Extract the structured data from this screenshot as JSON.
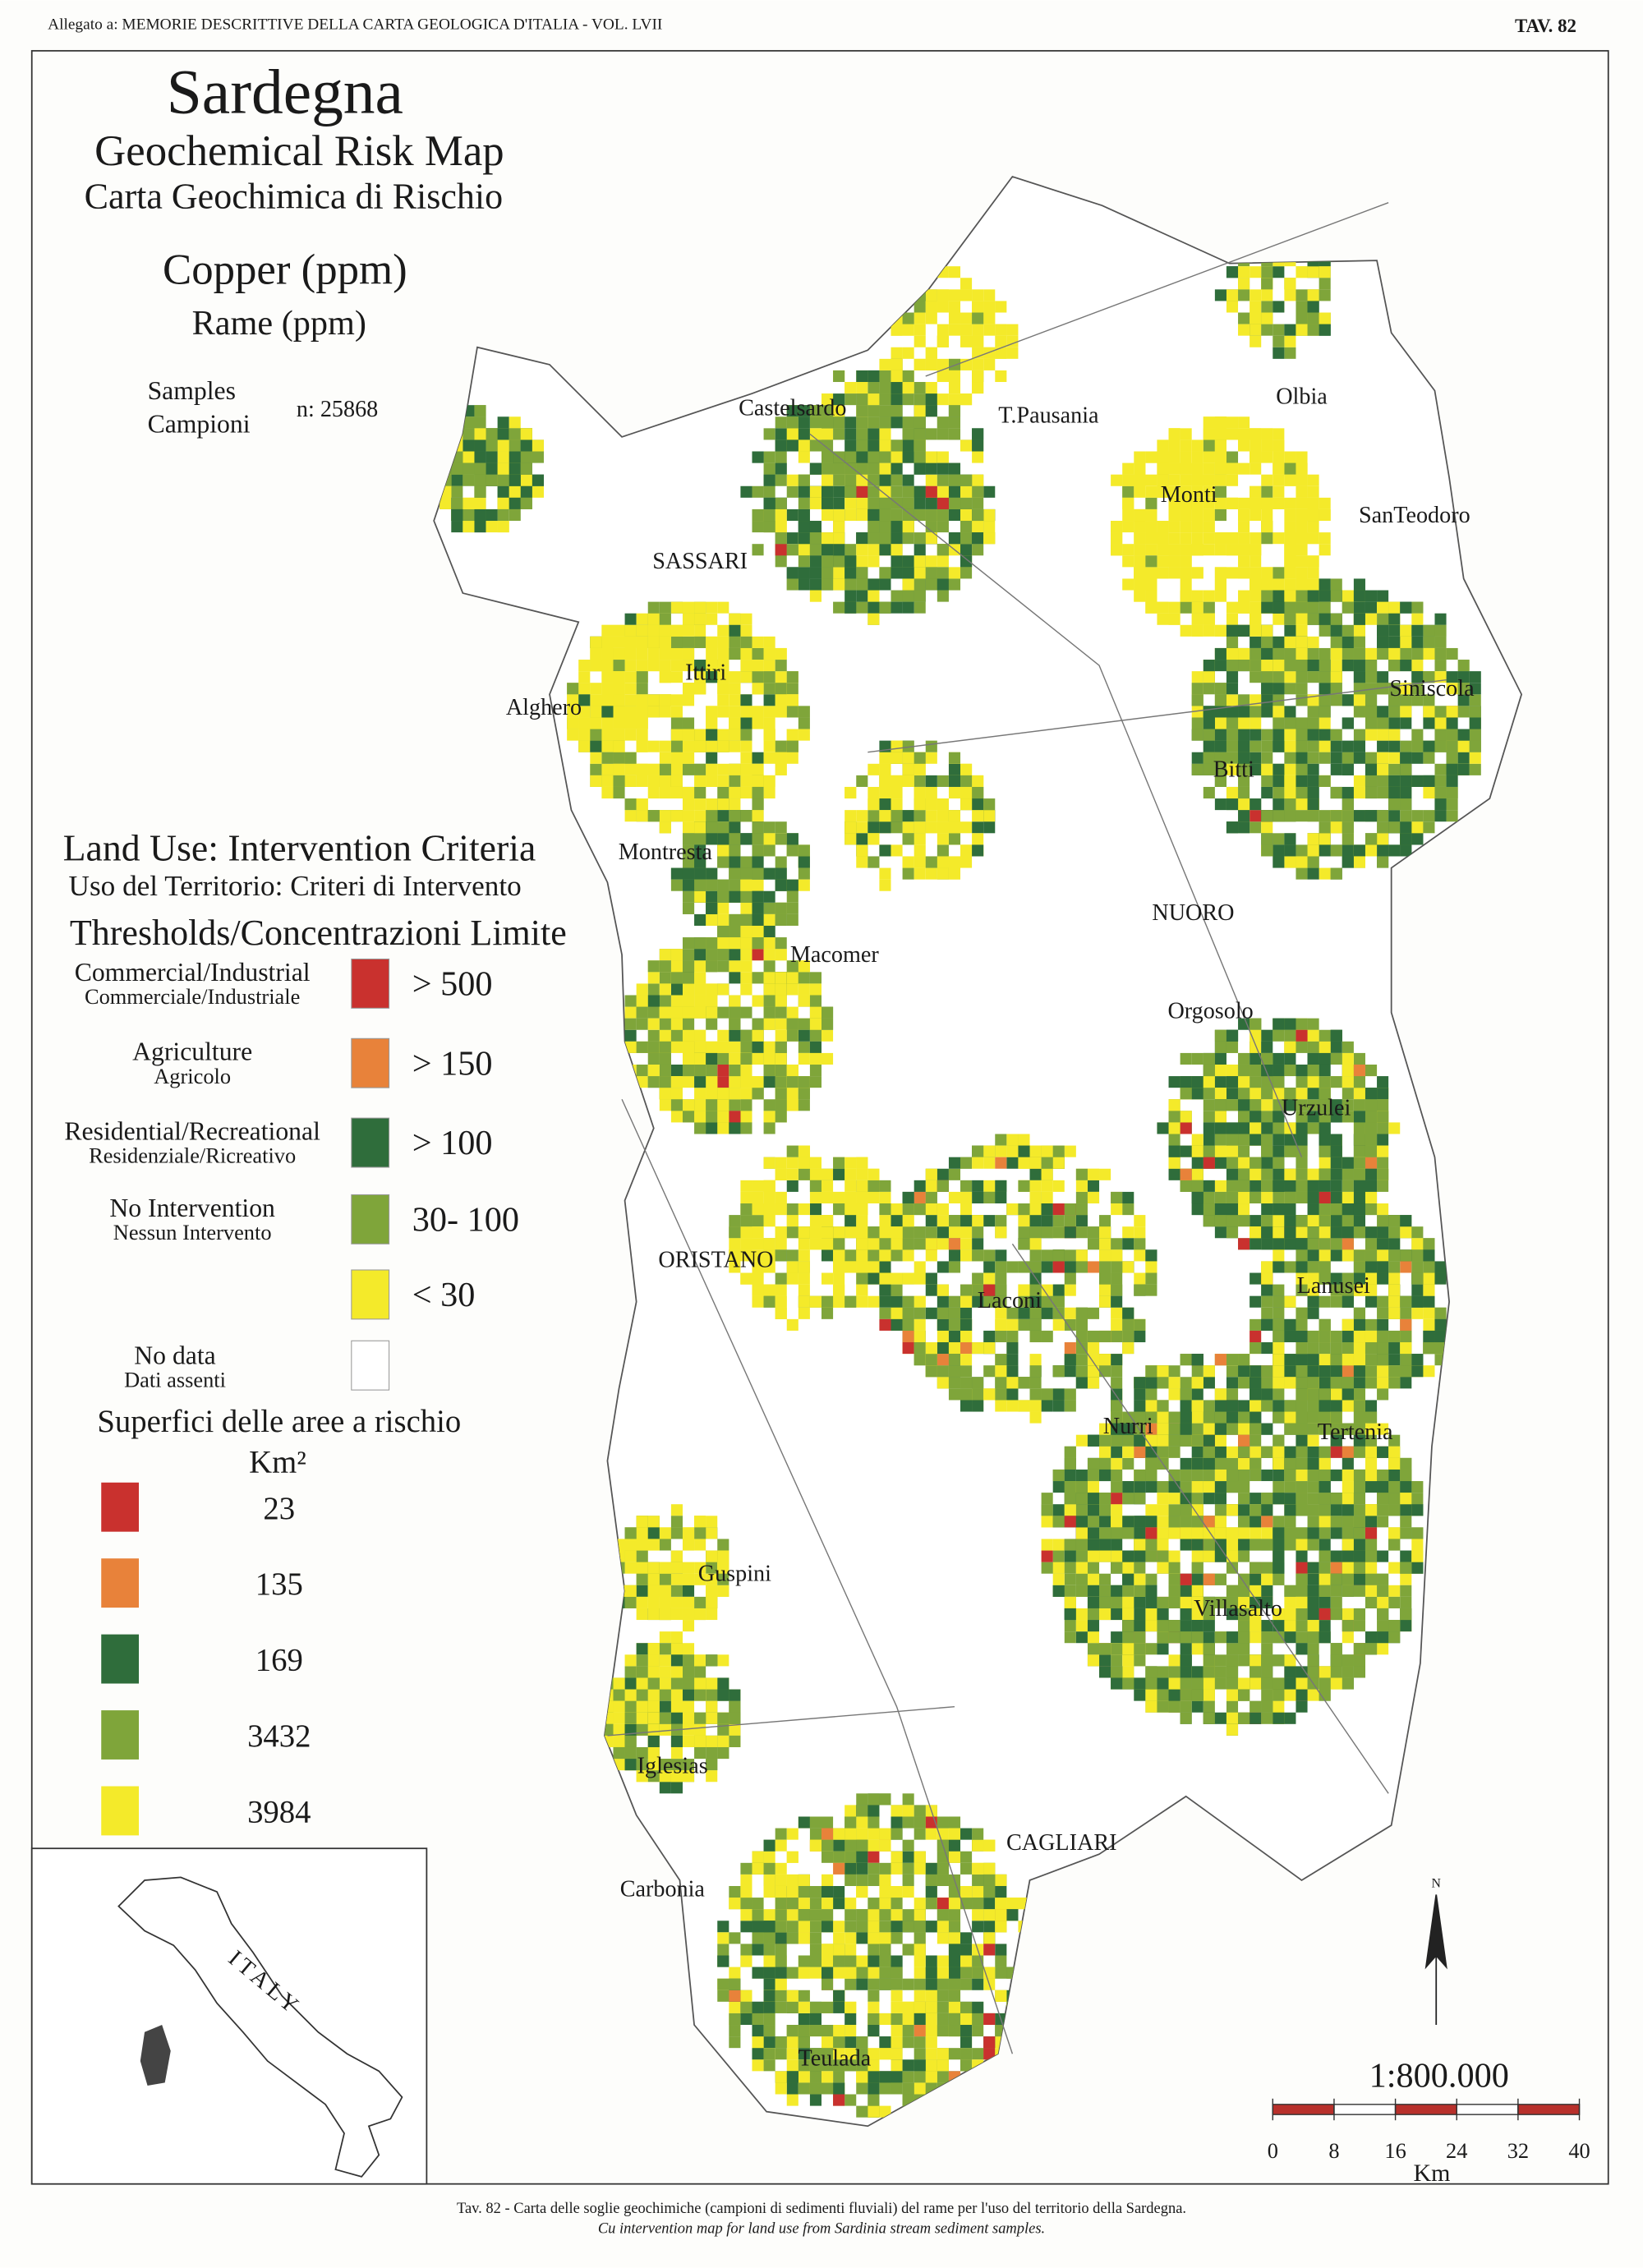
{
  "header": {
    "left": "Allegato a: MEMORIE DESCRITTIVE DELLA CARTA GEOLOGICA D'ITALIA - VOL. LVII",
    "right": "TAV. 82"
  },
  "title": {
    "region": "Sardegna",
    "en": "Geochemical Risk Map",
    "it": "Carta Geochimica di Rischio",
    "element_en": "Copper (ppm)",
    "element_it": "Rame (ppm)",
    "samples_en": "Samples",
    "samples_it": "Campioni",
    "samples_n": "n: 25868"
  },
  "legend": {
    "title_en": "Land Use: Intervention Criteria",
    "title_it": "Uso del Territorio: Criteri di Intervento",
    "thresholds_title": "Thresholds/Concentrazioni Limite",
    "classes": [
      {
        "label_en": "Commercial/Industrial",
        "label_it": "Commerciale/Industriale",
        "threshold": "> 500",
        "color": "#c9312e"
      },
      {
        "label_en": "Agriculture",
        "label_it": "Agricolo",
        "threshold": "> 150",
        "color": "#e8823a"
      },
      {
        "label_en": "Residential/Recreational",
        "label_it": "Residenziale/Ricreativo",
        "threshold": "> 100",
        "color": "#2f6d3b"
      },
      {
        "label_en": "No Intervention",
        "label_it": "Nessun Intervento",
        "threshold": "30- 100",
        "color": "#7fa53a"
      },
      {
        "threshold": "< 30",
        "color": "#f4ea2a"
      }
    ],
    "no_data": {
      "label_en": "No data",
      "label_it": "Dati assenti",
      "color": "#ffffff"
    }
  },
  "areas": {
    "title": "Superfici delle aree a rischio",
    "unit": "Km²",
    "items": [
      {
        "value": 23,
        "color": "#c9312e"
      },
      {
        "value": 135,
        "color": "#e8823a"
      },
      {
        "value": 169,
        "color": "#2f6d3b"
      },
      {
        "value": 3432,
        "color": "#7fa53a"
      },
      {
        "value": 3984,
        "color": "#f4ea2a"
      }
    ]
  },
  "places": [
    "Castelsardo",
    "T.Pausania",
    "Olbia",
    "Monti",
    "SanTeodoro",
    "SASSARI",
    "Ittiri",
    "Alghero",
    "Siniscola",
    "Bitti",
    "Montresta",
    "NUORO",
    "Macomer",
    "Orgosolo",
    "Urzulei",
    "ORISTANO",
    "Laconi",
    "Lanusei",
    "Nurri",
    "Tertenia",
    "Guspini",
    "Villasalto",
    "Iglesias",
    "CAGLIARI",
    "Carbonia",
    "Teulada"
  ],
  "inset": {
    "label": "ITALY"
  },
  "scale": {
    "north": "N",
    "ratio": "1:800.000",
    "ticks": [
      0,
      8,
      16,
      24,
      32,
      40
    ],
    "unit": "Km"
  },
  "caption": {
    "it": "Tav. 82 - Carta delle soglie geochimiche (campioni di sedimenti fluviali) del rame per l'uso del territorio della Sardegna.",
    "en": "Cu intervention map for land use from Sardinia stream sediment samples."
  }
}
